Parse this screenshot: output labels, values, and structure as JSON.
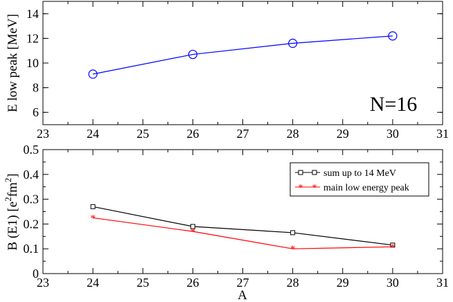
{
  "chart_data": [
    {
      "type": "line",
      "ylabel": "E low peak [MeV]",
      "xlim": [
        23,
        31
      ],
      "ylim": [
        5,
        15
      ],
      "xticks": [
        23,
        24,
        25,
        26,
        27,
        28,
        29,
        30,
        31
      ],
      "yticks": [
        6,
        8,
        10,
        12,
        14
      ],
      "annotation": "N=16",
      "series": [
        {
          "color": "#0000ff",
          "marker": "circle",
          "x": [
            24,
            26,
            28,
            30
          ],
          "y": [
            9.1,
            10.7,
            11.6,
            12.2
          ]
        }
      ]
    },
    {
      "type": "line",
      "xlabel": "A",
      "ylabel_main": "B (E1) [e",
      "ylabel_e_exp": "2",
      "ylabel_mid": "fm",
      "ylabel_fm_exp": "2",
      "ylabel_end": "]",
      "xlim": [
        23,
        31
      ],
      "ylim": [
        0,
        0.5
      ],
      "xticks": [
        23,
        24,
        25,
        26,
        27,
        28,
        29,
        30,
        31
      ],
      "yticks": [
        0,
        0.1,
        0.2,
        0.3,
        0.4,
        0.5
      ],
      "legend_position": "top-right",
      "series": [
        {
          "name": "sum up to 14 MeV",
          "color": "#000000",
          "marker": "square",
          "x": [
            24,
            26,
            28,
            30
          ],
          "y": [
            0.27,
            0.19,
            0.165,
            0.115
          ]
        },
        {
          "name": "main low energy peak",
          "color": "#ff0000",
          "marker": "star",
          "x": [
            24,
            26,
            28,
            30
          ],
          "y": [
            0.225,
            0.17,
            0.1,
            0.108
          ]
        }
      ]
    }
  ]
}
